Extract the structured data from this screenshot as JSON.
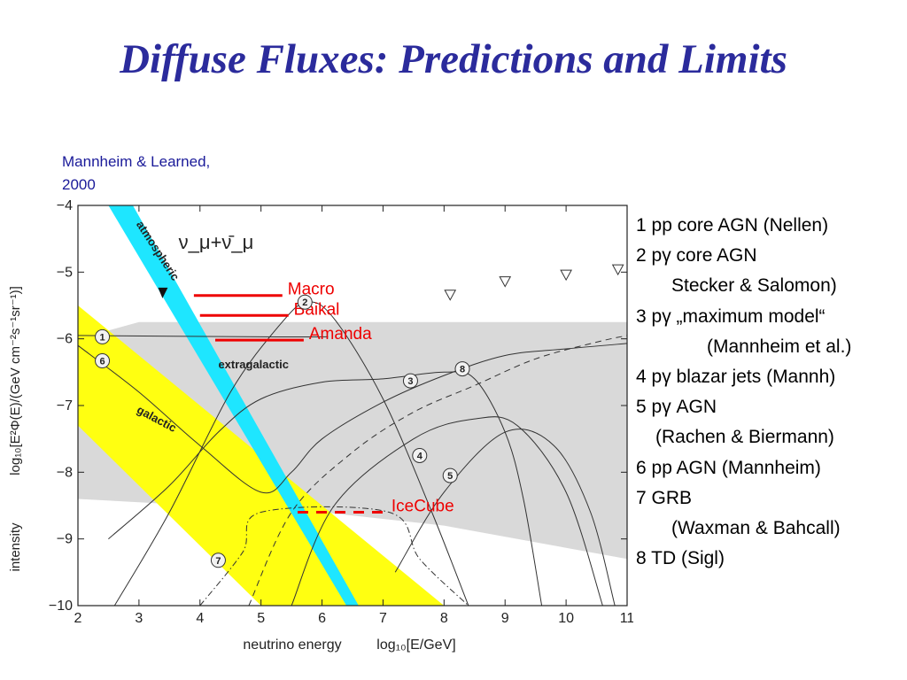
{
  "slide": {
    "title": "Diffuse Fluxes: Predictions and Limits",
    "citation_line1": "Mannheim & Learned,",
    "citation_line2": "2000"
  },
  "legend": {
    "rows": [
      "1 pp core AGN (Nellen)",
      "2 pγ core AGN",
      "Stecker & Salomon)",
      "3 pγ „maximum model“",
      "(Mannheim et al.)",
      "4 pγ blazar jets (Mannh)",
      "5 pγ AGN",
      "(Rachen & Biermann)",
      "6 pp AGN  (Mannheim)",
      "7 GRB",
      "(Waxman & Bahcall)",
      "8 TD (Sigl)"
    ]
  },
  "chart_data": {
    "type": "line",
    "xlabel": "neutrino energy",
    "xlabel_unit": "log₁₀[E/GeV]",
    "ylabel": "log₁₀[E²Φ(E)/(GeV cm⁻²s⁻¹sr⁻¹)]",
    "ylabel_prefix": "intensity",
    "xlim": [
      2,
      11
    ],
    "ylim": [
      -10,
      -4
    ],
    "xticks": [
      "2",
      "3",
      "4",
      "5",
      "6",
      "7",
      "8",
      "9",
      "10",
      "11"
    ],
    "yticks": [
      "−4",
      "−5",
      "−6",
      "−7",
      "−8",
      "−9",
      "−10"
    ],
    "grid": false,
    "colors": {
      "atmospheric": "#1ee6ff",
      "galactic": "#ffff11",
      "extragalactic": "#d9d9d9",
      "limits": "#ee0000",
      "curves": "#333333"
    },
    "bands": [
      {
        "name": "atmospheric",
        "label": "atmospheric",
        "left_edge": [
          [
            2.5,
            -4
          ],
          [
            6.4,
            -10
          ]
        ],
        "right_edge": [
          [
            2.9,
            -4
          ],
          [
            6.6,
            -10
          ]
        ]
      },
      {
        "name": "galactic",
        "label": "galactic",
        "upper_edge": [
          [
            2.0,
            -5.5
          ],
          [
            8.0,
            -10
          ]
        ],
        "lower_edge": [
          [
            2.0,
            -7.3
          ],
          [
            5.0,
            -10
          ]
        ]
      },
      {
        "name": "extragalactic",
        "label": "extragalactic",
        "upper_edge": [
          [
            2.0,
            -6.0
          ],
          [
            3.0,
            -5.75
          ],
          [
            11.0,
            -5.75
          ]
        ],
        "lower_edge": [
          [
            2.0,
            -8.4
          ],
          [
            6.0,
            -8.6
          ],
          [
            8.0,
            -8.8
          ],
          [
            11.0,
            -9.3
          ]
        ]
      }
    ],
    "atmospheric_label": "ν_μ+ν̄_μ",
    "limits": [
      {
        "name": "Macro",
        "x": [
          3.9,
          5.35
        ],
        "y": -5.35
      },
      {
        "name": "Baikal",
        "x": [
          4.0,
          5.45
        ],
        "y": -5.65
      },
      {
        "name": "Amanda",
        "x": [
          4.25,
          5.7
        ],
        "y": -6.02
      },
      {
        "name": "IceCube",
        "x": [
          5.6,
          7.05
        ],
        "y": -8.6,
        "dashed": true
      }
    ],
    "curves": [
      {
        "id": "1",
        "points": [
          [
            2.0,
            -5.95
          ],
          [
            5.0,
            -5.97
          ],
          [
            6.1,
            -5.97
          ]
        ]
      },
      {
        "id": "2",
        "points": [
          [
            2.6,
            -10
          ],
          [
            3.5,
            -8.6
          ],
          [
            4.5,
            -6.8
          ],
          [
            5.3,
            -5.8
          ],
          [
            5.75,
            -5.45
          ],
          [
            6.2,
            -5.7
          ],
          [
            7.0,
            -6.9
          ],
          [
            7.8,
            -8.6
          ],
          [
            8.4,
            -10
          ]
        ]
      },
      {
        "id": "3",
        "points": [
          [
            2.5,
            -9.0
          ],
          [
            3.5,
            -8.2
          ],
          [
            4.3,
            -7.4
          ],
          [
            5.0,
            -6.9
          ],
          [
            6.0,
            -6.65
          ],
          [
            7.0,
            -6.6
          ],
          [
            8.0,
            -6.5
          ],
          [
            8.5,
            -6.6
          ],
          [
            9.0,
            -7.4
          ],
          [
            9.3,
            -8.4
          ],
          [
            9.6,
            -10
          ]
        ]
      },
      {
        "id": "4",
        "points": [
          [
            5.5,
            -10
          ],
          [
            6.2,
            -8.5
          ],
          [
            7.5,
            -7.5
          ],
          [
            8.5,
            -7.2
          ],
          [
            9.2,
            -7.3
          ],
          [
            10.0,
            -8.3
          ],
          [
            10.6,
            -10
          ]
        ]
      },
      {
        "id": "5",
        "points": [
          [
            7.2,
            -9.5
          ],
          [
            8.0,
            -8.3
          ],
          [
            9.0,
            -7.4
          ],
          [
            9.8,
            -7.6
          ],
          [
            10.4,
            -8.6
          ],
          [
            10.8,
            -10
          ]
        ]
      },
      {
        "id": "6",
        "points": [
          [
            2.0,
            -6.1
          ],
          [
            3.0,
            -6.8
          ],
          [
            4.0,
            -7.6
          ],
          [
            5.0,
            -8.3
          ],
          [
            5.5,
            -8.0
          ],
          [
            6.0,
            -7.5
          ],
          [
            7.0,
            -6.95
          ],
          [
            8.0,
            -6.55
          ],
          [
            9.0,
            -6.25
          ],
          [
            10.0,
            -6.15
          ],
          [
            11.0,
            -6.07
          ]
        ]
      },
      {
        "id": "7",
        "points": [
          [
            4.0,
            -10
          ],
          [
            4.7,
            -9.2
          ],
          [
            5.0,
            -8.6
          ],
          [
            7.1,
            -8.6
          ],
          [
            7.6,
            -9.3
          ],
          [
            8.4,
            -10
          ]
        ],
        "dashdot": true
      },
      {
        "id": "8",
        "points": [
          [
            4.8,
            -10
          ],
          [
            5.5,
            -8.6
          ],
          [
            6.5,
            -7.7
          ],
          [
            7.5,
            -7.1
          ],
          [
            8.5,
            -6.7
          ],
          [
            9.5,
            -6.3
          ],
          [
            10.5,
            -6.05
          ],
          [
            11.0,
            -5.95
          ]
        ],
        "dashed": true
      }
    ],
    "markers": [
      {
        "id": "1",
        "x": 2.4,
        "y": -5.97
      },
      {
        "id": "2",
        "x": 5.72,
        "y": -5.45
      },
      {
        "id": "3",
        "x": 7.45,
        "y": -6.63
      },
      {
        "id": "4",
        "x": 7.6,
        "y": -7.75
      },
      {
        "id": "5",
        "x": 8.1,
        "y": -8.05
      },
      {
        "id": "6",
        "x": 2.4,
        "y": -6.33
      },
      {
        "id": "7",
        "x": 4.3,
        "y": -9.32
      },
      {
        "id": "8",
        "x": 8.3,
        "y": -6.45
      }
    ],
    "upper_limit_triangles": [
      {
        "x": 8.1,
        "y": -5.35
      },
      {
        "x": 9.0,
        "y": -5.15
      },
      {
        "x": 10.0,
        "y": -5.05
      },
      {
        "x": 10.85,
        "y": -4.97
      }
    ],
    "annotations": [
      "atmospheric",
      "galactic",
      "extragalactic"
    ]
  }
}
